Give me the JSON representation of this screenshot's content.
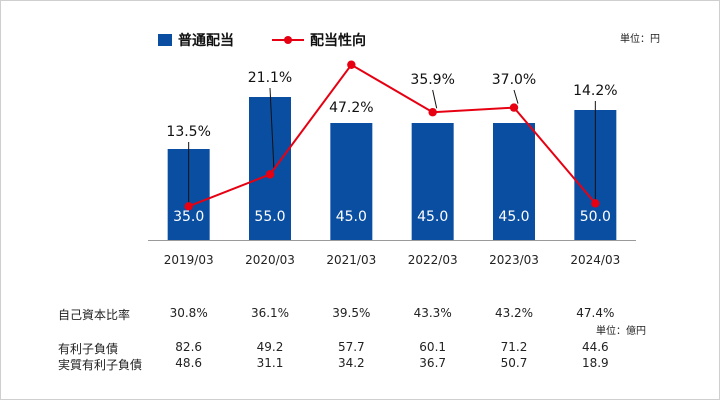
{
  "legend": {
    "bar_label": "普通配当",
    "line_label": "配当性向"
  },
  "unit_chart": "単位：円",
  "unit_table": "単位：億円",
  "colors": {
    "bar": "#0a4ea2",
    "line": "#e60012"
  },
  "chart_data": {
    "type": "bar",
    "categories": [
      "2019/03",
      "2020/03",
      "2021/03",
      "2022/03",
      "2023/03",
      "2024/03"
    ],
    "series": [
      {
        "name": "普通配当",
        "type": "bar",
        "values": [
          35.0,
          55.0,
          45.0,
          45.0,
          45.0,
          50.0
        ],
        "labels": [
          "35.0",
          "55.0",
          "45.0",
          "45.0",
          "45.0",
          "50.0"
        ]
      },
      {
        "name": "配当性向",
        "type": "line",
        "values": [
          13.5,
          21.1,
          47.2,
          35.9,
          37.0,
          14.2
        ],
        "labels": [
          "13.5%",
          "21.1%",
          "47.2%",
          "35.9%",
          "37.0%",
          "14.2%"
        ]
      }
    ],
    "legend_position": "top",
    "grid": false
  },
  "table": {
    "rows": [
      {
        "label": "自己資本比率",
        "values": [
          "30.8%",
          "36.1%",
          "39.5%",
          "43.3%",
          "43.2%",
          "47.4%"
        ]
      },
      {
        "label": "有利子負債",
        "values": [
          "82.6",
          "49.2",
          "57.7",
          "60.1",
          "71.2",
          "44.6"
        ]
      },
      {
        "label": "実質有利子負債",
        "values": [
          "48.6",
          "31.1",
          "34.2",
          "36.7",
          "50.7",
          "18.9"
        ]
      }
    ]
  }
}
